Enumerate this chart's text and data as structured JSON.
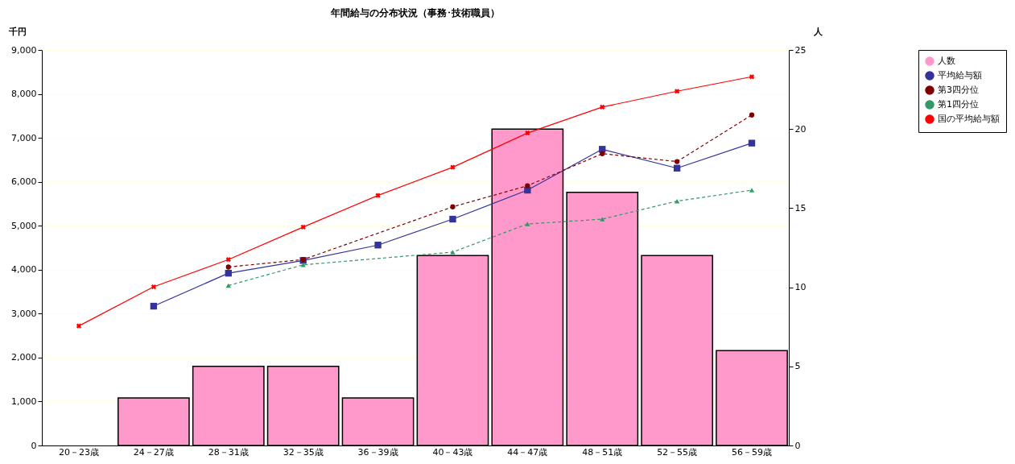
{
  "chart_data": {
    "type": "line",
    "title": "年間給与の分布状況（事務･技術職員）",
    "ylabel": "千円",
    "y2label": "人",
    "categories": [
      "20－23歳",
      "24－27歳",
      "28－31歳",
      "32－35歳",
      "36－39歳",
      "40－43歳",
      "44－47歳",
      "48－51歳",
      "52－55歳",
      "56－59歳"
    ],
    "series": [
      {
        "name": "人数",
        "type": "bar",
        "axis": "y2",
        "color": "#ff99cc",
        "values": [
          null,
          3,
          5,
          5,
          3,
          12,
          20,
          16,
          12,
          6
        ]
      },
      {
        "name": "平均給与額",
        "color": "#333399",
        "marker": "square",
        "line_style": "solid",
        "values": [
          null,
          3170,
          3920,
          4210,
          4560,
          5150,
          5810,
          6740,
          6310,
          6880
        ]
      },
      {
        "name": "第3四分位",
        "color": "#800000",
        "marker": "circle",
        "line_style": "dashed",
        "values": [
          null,
          null,
          4060,
          4230,
          null,
          5430,
          5910,
          6640,
          6460,
          7520
        ]
      },
      {
        "name": "第1四分位",
        "color": "#339966",
        "marker": "triangle",
        "line_style": "dashed",
        "values": [
          null,
          null,
          3640,
          4110,
          null,
          4400,
          5040,
          5150,
          5560,
          5810
        ]
      },
      {
        "name": "国の平均給与額",
        "color": "#ff0000",
        "marker": "cross",
        "line_style": "solid",
        "values": [
          2720,
          3610,
          4230,
          4970,
          5690,
          6330,
          7110,
          7700,
          8060,
          8390
        ]
      }
    ],
    "ylim": [
      0,
      9000
    ],
    "yticks": [
      0,
      {
        "value": 1000,
        "label": "1,000"
      },
      {
        "value": 2000,
        "label": "2,000"
      },
      {
        "value": 3000,
        "label": "3,000"
      },
      {
        "value": 4000,
        "label": "4,000"
      },
      {
        "value": 5000,
        "label": "5,000"
      },
      {
        "value": 6000,
        "label": "6,000"
      },
      {
        "value": 7000,
        "label": "7,000"
      },
      {
        "value": 8000,
        "label": "8,000"
      },
      {
        "value": 9000,
        "label": "9,000"
      }
    ],
    "y2lim": [
      0,
      25
    ],
    "y2ticks": [
      0,
      5,
      10,
      15,
      20,
      25
    ],
    "grid": "y",
    "legend": "right"
  }
}
